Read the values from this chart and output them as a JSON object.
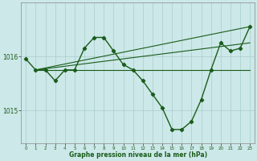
{
  "xlabel": "Graphe pression niveau de la mer (hPa)",
  "background_color": "#cce8e8",
  "grid_color": "#aacccc",
  "line_color": "#1a5c1a",
  "ylim": [
    1014.4,
    1017.0
  ],
  "yticks": [
    1015,
    1016
  ],
  "xlim": [
    -0.5,
    23.5
  ],
  "xticks": [
    0,
    1,
    2,
    3,
    4,
    5,
    6,
    7,
    8,
    9,
    10,
    11,
    12,
    13,
    14,
    15,
    16,
    17,
    18,
    19,
    20,
    21,
    22,
    23
  ],
  "series1_x": [
    0,
    1,
    2,
    3,
    4,
    5,
    6,
    7,
    8,
    9,
    10,
    11,
    12,
    13,
    14,
    15,
    16,
    17,
    18,
    19,
    20,
    21,
    22,
    23
  ],
  "series1_y": [
    1015.95,
    1015.75,
    1015.75,
    1015.55,
    1015.75,
    1015.75,
    1016.15,
    1016.35,
    1016.35,
    1016.1,
    1015.85,
    1015.75,
    1015.55,
    1015.3,
    1015.05,
    1014.65,
    1014.65,
    1014.8,
    1015.2,
    1015.75,
    1016.25,
    1016.1,
    1016.15,
    1016.55
  ],
  "series2_x": [
    1,
    23
  ],
  "series2_y": [
    1015.75,
    1015.75
  ],
  "series3_x": [
    1,
    23
  ],
  "series3_y": [
    1015.75,
    1016.25
  ],
  "series4_x": [
    1,
    23
  ],
  "series4_y": [
    1015.75,
    1016.55
  ]
}
